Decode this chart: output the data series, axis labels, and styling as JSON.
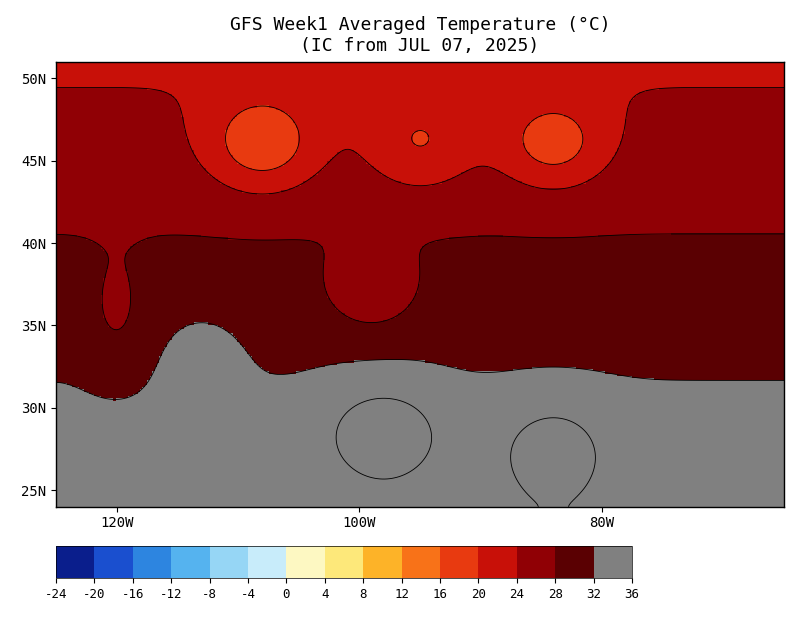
{
  "title_line1": "GFS Week1 Averaged Temperature (°C)",
  "title_line2": "(IC from JUL 07, 2025)",
  "colorbar_ticks": [
    -24,
    -20,
    -16,
    -12,
    -8,
    -4,
    0,
    4,
    8,
    12,
    16,
    20,
    24,
    28,
    32,
    36
  ],
  "colorbar_colors": [
    "#0a1e8c",
    "#1a4fcf",
    "#2d85e0",
    "#55b3ef",
    "#96d6f5",
    "#c8ecfa",
    "#fdf8c2",
    "#fde87a",
    "#fdb328",
    "#f87218",
    "#e83a10",
    "#c81008",
    "#900005",
    "#5a0002",
    "#808080"
  ],
  "map_xlim": [
    -125,
    -65
  ],
  "map_ylim": [
    24,
    51
  ],
  "xticks": [
    -120,
    -100,
    -80
  ],
  "xtick_labels": [
    "120W",
    "100W",
    "80W"
  ],
  "yticks": [
    25,
    30,
    35,
    40,
    45,
    50
  ],
  "ytick_labels": [
    "25N",
    "30N",
    "35N",
    "40N",
    "45N",
    "50N"
  ],
  "bg_color": "#ffffff",
  "figsize": [
    8.0,
    6.18
  ],
  "dpi": 100
}
